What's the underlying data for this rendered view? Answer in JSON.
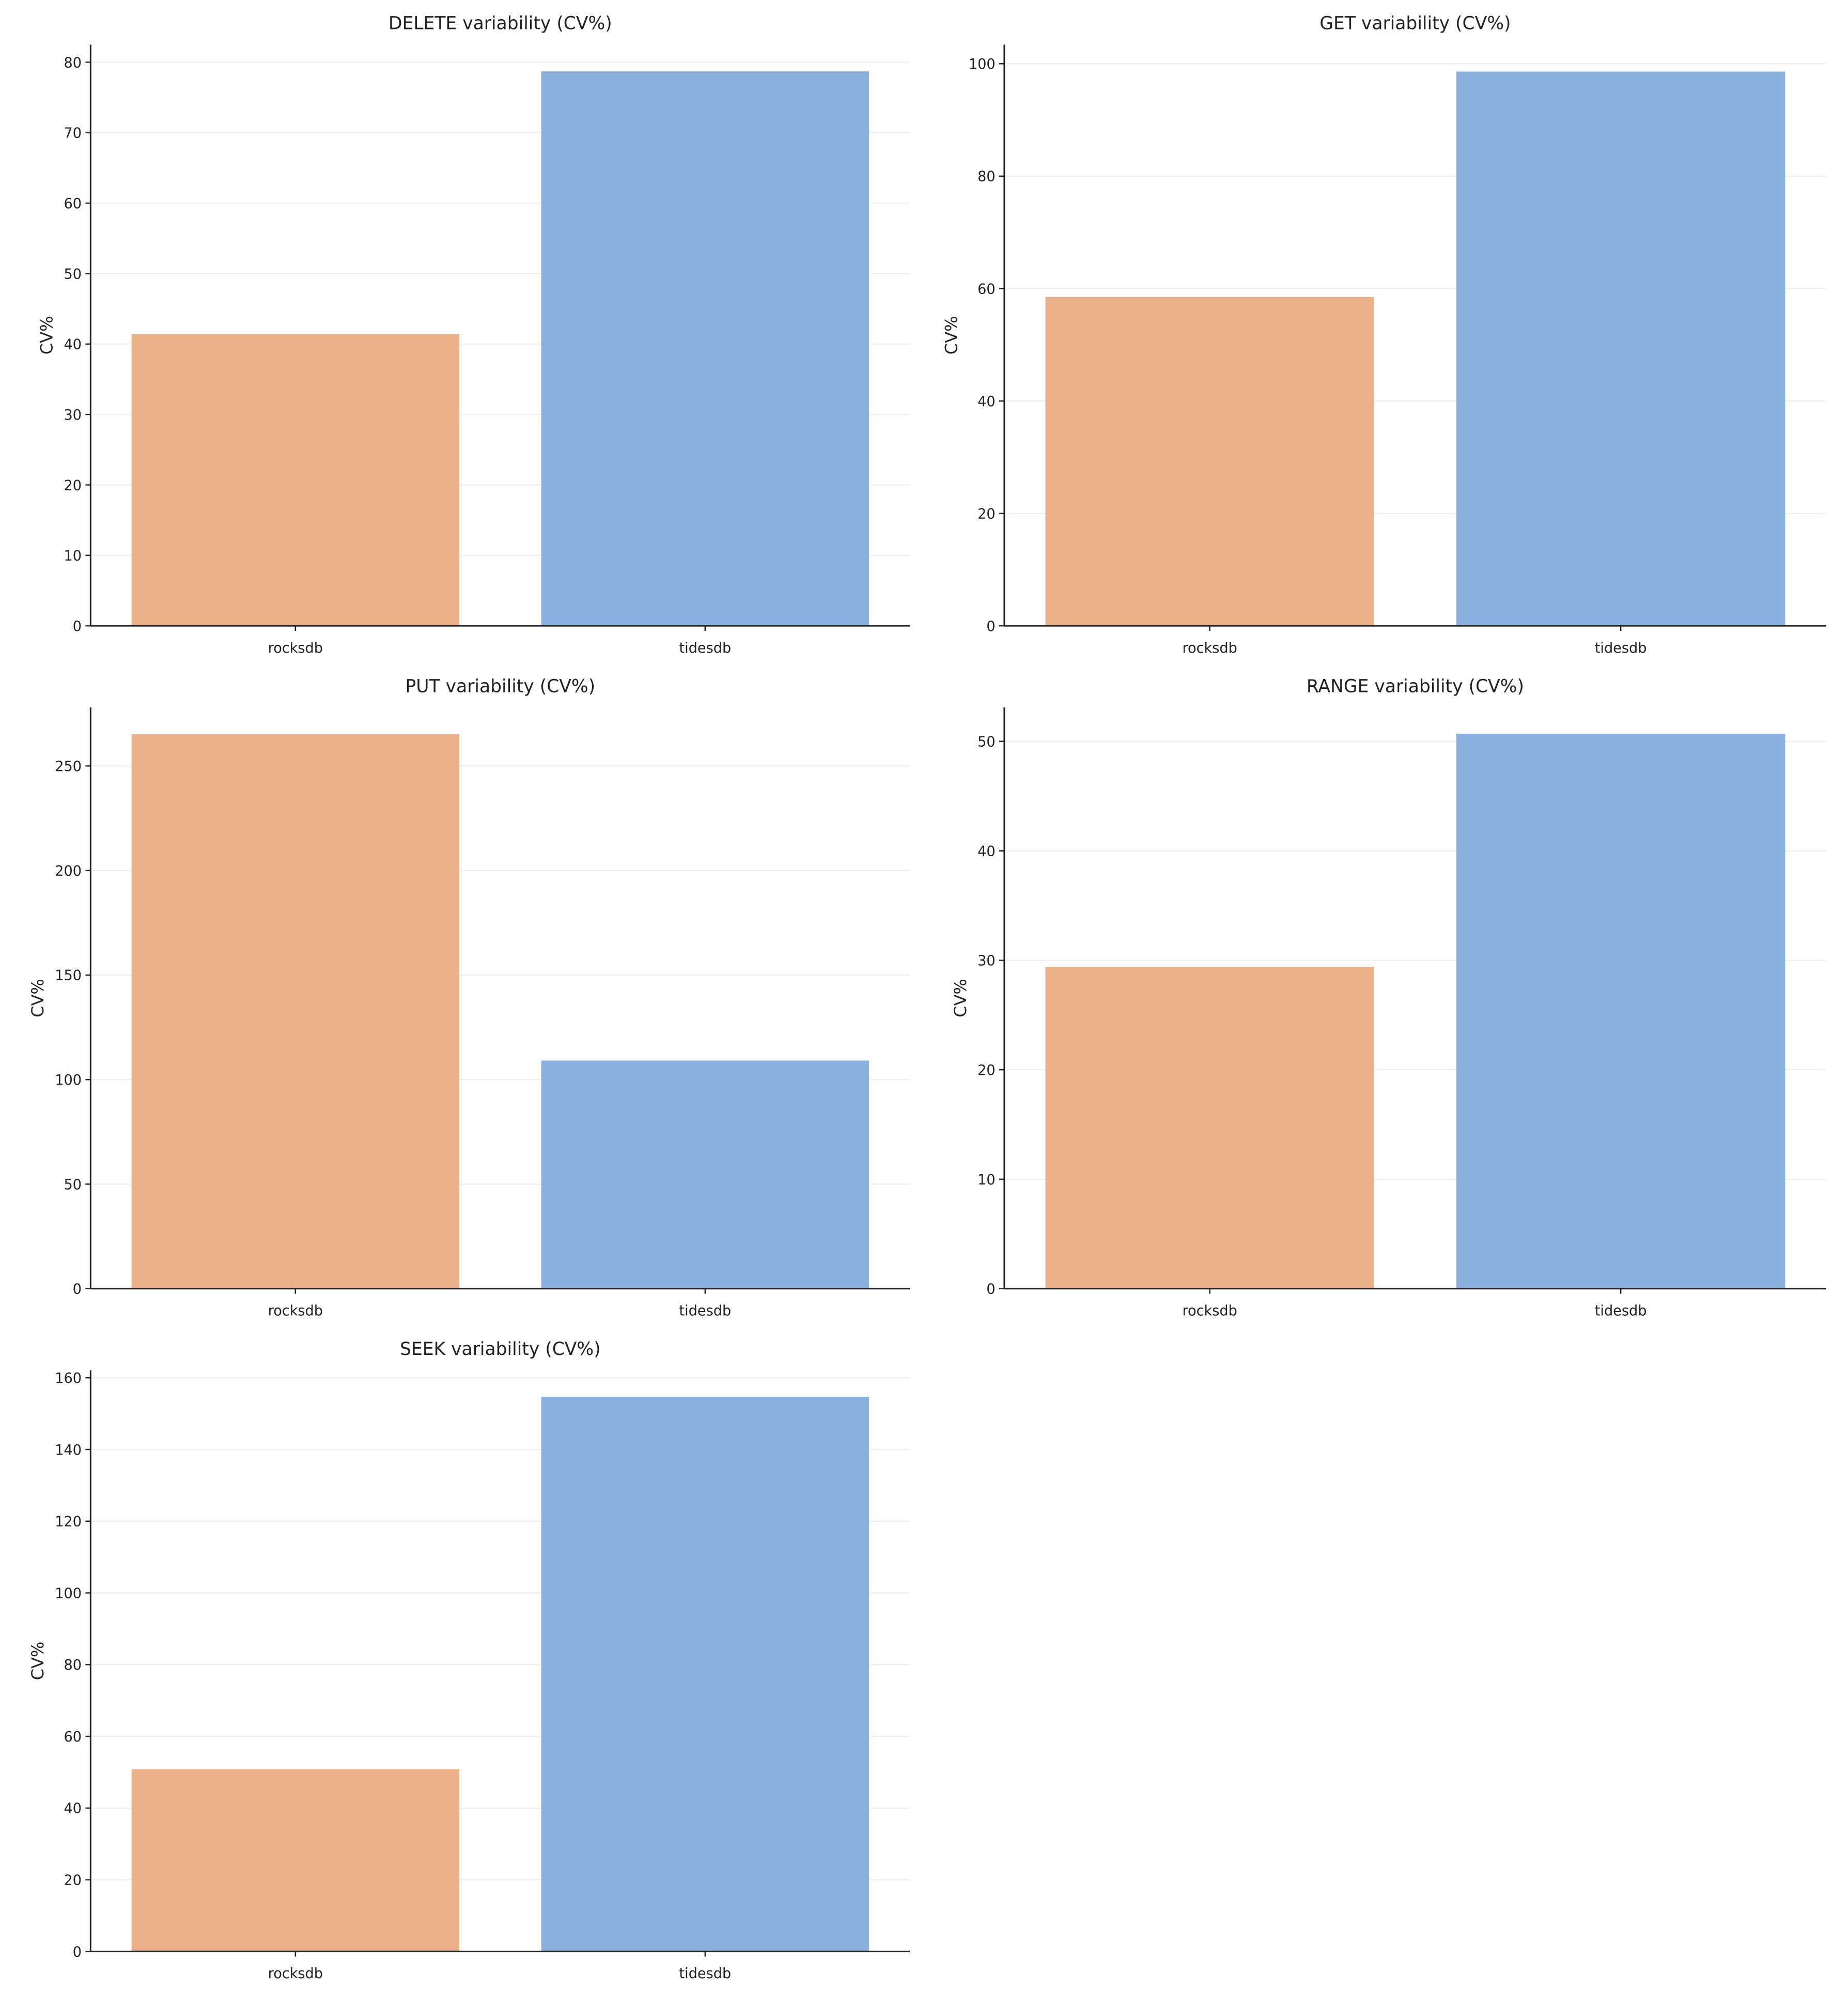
{
  "chart_data": [
    {
      "type": "bar",
      "title": "DELETE variability (CV%)",
      "xlabel": "",
      "ylabel": "CV%",
      "categories": [
        "rocksdb",
        "tidesdb"
      ],
      "values": [
        41.4,
        78.7
      ],
      "ylim": [
        0,
        82.5
      ],
      "yticks": [
        0,
        10,
        20,
        30,
        40,
        50,
        60,
        70,
        80
      ],
      "grid": "y"
    },
    {
      "type": "bar",
      "title": "GET variability (CV%)",
      "xlabel": "",
      "ylabel": "CV%",
      "categories": [
        "rocksdb",
        "tidesdb"
      ],
      "values": [
        58.5,
        98.6
      ],
      "ylim": [
        0,
        103.4
      ],
      "yticks": [
        0,
        20,
        40,
        60,
        80,
        100
      ],
      "grid": "y"
    },
    {
      "type": "bar",
      "title": "PUT variability (CV%)",
      "xlabel": "",
      "ylabel": "CV%",
      "categories": [
        "rocksdb",
        "tidesdb"
      ],
      "values": [
        265.2,
        109.1
      ],
      "ylim": [
        0,
        278
      ],
      "yticks": [
        0,
        50,
        100,
        150,
        200,
        250
      ],
      "grid": "y"
    },
    {
      "type": "bar",
      "title": "RANGE variability (CV%)",
      "xlabel": "",
      "ylabel": "CV%",
      "categories": [
        "rocksdb",
        "tidesdb"
      ],
      "values": [
        29.4,
        50.7
      ],
      "ylim": [
        0,
        53.1
      ],
      "yticks": [
        0,
        10,
        20,
        30,
        40,
        50
      ],
      "grid": "y"
    },
    {
      "type": "bar",
      "title": "SEEK variability (CV%)",
      "xlabel": "",
      "ylabel": "CV%",
      "categories": [
        "rocksdb",
        "tidesdb"
      ],
      "values": [
        50.8,
        154.7
      ],
      "ylim": [
        0,
        162.1
      ],
      "yticks": [
        0,
        20,
        40,
        60,
        80,
        100,
        120,
        140,
        160
      ],
      "grid": "y"
    }
  ],
  "colors": {
    "rocksdb": "#e9b08a",
    "tidesdb": "#8db1de",
    "grid": "#f0f0f0",
    "axis": "#222222"
  }
}
